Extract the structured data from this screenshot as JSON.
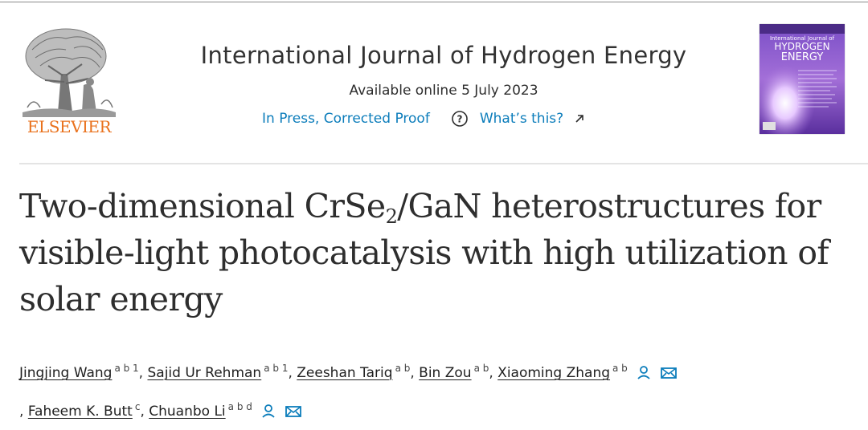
{
  "publisher": {
    "name": "ELSEVIER",
    "logo_icon": "tree-and-scholar-logo"
  },
  "journal": {
    "title": "International Journal of Hydrogen Energy",
    "available_online": "Available online 5 July 2023",
    "status_link": "In Press, Corrected Proof",
    "help_icon": "question-circle-icon",
    "help_link": "What’s this?",
    "external_icon": "external-arrow-icon",
    "cover": {
      "line1": "International Journal of",
      "line2": "HYDROGEN",
      "line3": "ENERGY",
      "accent": "#6b3fb0"
    }
  },
  "article": {
    "title_part1": "Two-dimensional CrSe",
    "title_sub": "2",
    "title_part2": "/GaN heterostructures for visible-light photocatalysis with high utilization of solar energy"
  },
  "authors": [
    {
      "name": "Jingjing Wang",
      "aff": "a b 1",
      "sep": ", "
    },
    {
      "name": "Sajid Ur Rehman",
      "aff": "a b 1",
      "sep": ", "
    },
    {
      "name": "Zeeshan Tariq",
      "aff": "a b",
      "sep": ", "
    },
    {
      "name": "Bin Zou",
      "aff": "a b",
      "sep": ", "
    },
    {
      "name": "Xiaoming Zhang",
      "aff": "a b",
      "sep": ""
    },
    {
      "name": "Faheem K. Butt",
      "aff": "c",
      "sep": ", "
    },
    {
      "name": "Chuanbo Li",
      "aff": "a b d",
      "sep": ""
    }
  ],
  "colors": {
    "link": "#0c7dbb",
    "elsevier": "#e9711c",
    "text": "#2e2e2e"
  }
}
